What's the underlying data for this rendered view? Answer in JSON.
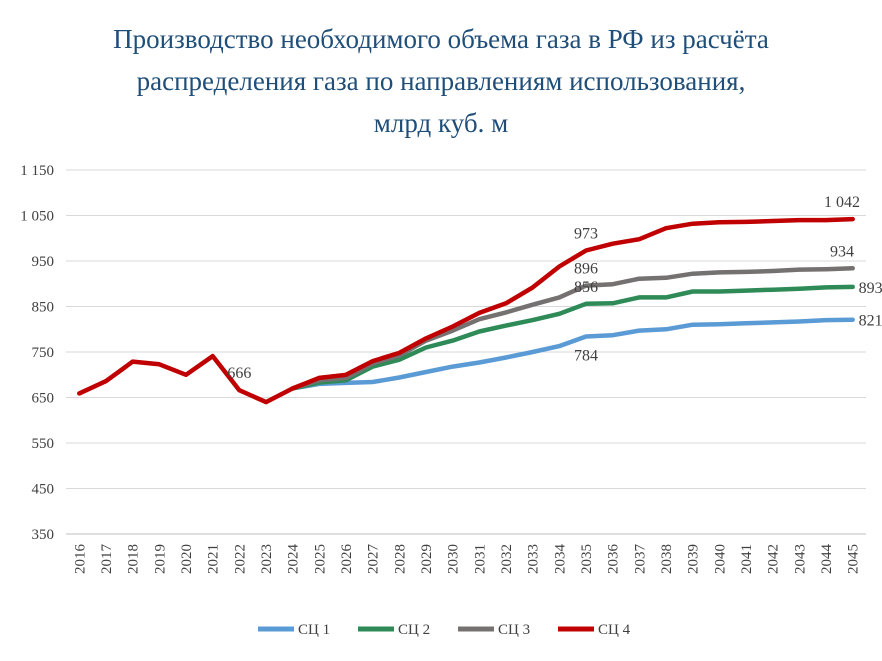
{
  "chart_data": {
    "type": "line",
    "title": [
      "Производство необходимого объема газа в РФ из расчёта",
      "распределения газа по направлениям использования,",
      "млрд куб. м"
    ],
    "xlabel": "",
    "ylabel": "",
    "ylim": [
      350,
      1150
    ],
    "yticks": [
      "1 150",
      "1 050",
      "950",
      "850",
      "750",
      "650",
      "550",
      "450",
      "350"
    ],
    "ytick_values": [
      1150,
      1050,
      950,
      850,
      750,
      650,
      550,
      450,
      350
    ],
    "grid": "horizontal",
    "legend_position": "bottom",
    "x": [
      "2016",
      "2017",
      "2018",
      "2019",
      "2020",
      "2021",
      "2022",
      "2023",
      "2024",
      "2025",
      "2026",
      "2027",
      "2028",
      "2029",
      "2030",
      "2031",
      "2032",
      "2033",
      "2034",
      "2035",
      "2036",
      "2037",
      "2038",
      "2039",
      "2040",
      "2041",
      "2042",
      "2043",
      "2044",
      "2045"
    ],
    "series": [
      {
        "name": "СЦ 1",
        "color": "#5b9bd5",
        "values": [
          null,
          null,
          null,
          null,
          null,
          null,
          null,
          null,
          670,
          680,
          682,
          684,
          694,
          706,
          718,
          727,
          738,
          750,
          763,
          784,
          787,
          797,
          800,
          810,
          811,
          813,
          815,
          817,
          820,
          821
        ]
      },
      {
        "name": "СЦ 2",
        "color": "#2e8b57",
        "values": [
          null,
          null,
          null,
          null,
          null,
          null,
          null,
          null,
          670,
          683,
          688,
          718,
          733,
          760,
          775,
          795,
          808,
          820,
          834,
          856,
          857,
          870,
          870,
          883,
          883,
          885,
          887,
          889,
          892,
          893
        ]
      },
      {
        "name": "СЦ 3",
        "color": "#767171",
        "values": [
          null,
          null,
          null,
          null,
          null,
          null,
          null,
          null,
          670,
          688,
          693,
          725,
          742,
          775,
          797,
          822,
          837,
          854,
          870,
          896,
          899,
          911,
          913,
          922,
          925,
          926,
          928,
          931,
          932,
          934
        ]
      },
      {
        "name": "СЦ 4",
        "color": "#c00000",
        "values": [
          659,
          686,
          729,
          723,
          700,
          741,
          666,
          640,
          670,
          693,
          700,
          730,
          748,
          780,
          806,
          836,
          857,
          892,
          938,
          973,
          988,
          998,
          1022,
          1032,
          1035,
          1036,
          1038,
          1040,
          1040,
          1042
        ]
      }
    ],
    "data_labels": [
      {
        "text": "666",
        "series": "СЦ 4",
        "x": "2022",
        "position": "above"
      },
      {
        "text": "973",
        "series": "СЦ 4",
        "x": "2035",
        "position": "above"
      },
      {
        "text": "1 042",
        "series": "СЦ 4",
        "x": "2045",
        "position": "above"
      },
      {
        "text": "896",
        "series": "СЦ 3",
        "x": "2035",
        "position": "above"
      },
      {
        "text": "934",
        "series": "СЦ 3",
        "x": "2045",
        "position": "above"
      },
      {
        "text": "856",
        "series": "СЦ 2",
        "x": "2035",
        "position": "above"
      },
      {
        "text": "893",
        "series": "СЦ 2",
        "x": "2045",
        "position": "right"
      },
      {
        "text": "784",
        "series": "СЦ 1",
        "x": "2035",
        "position": "below"
      },
      {
        "text": "821",
        "series": "СЦ 1",
        "x": "2045",
        "position": "right"
      }
    ]
  }
}
